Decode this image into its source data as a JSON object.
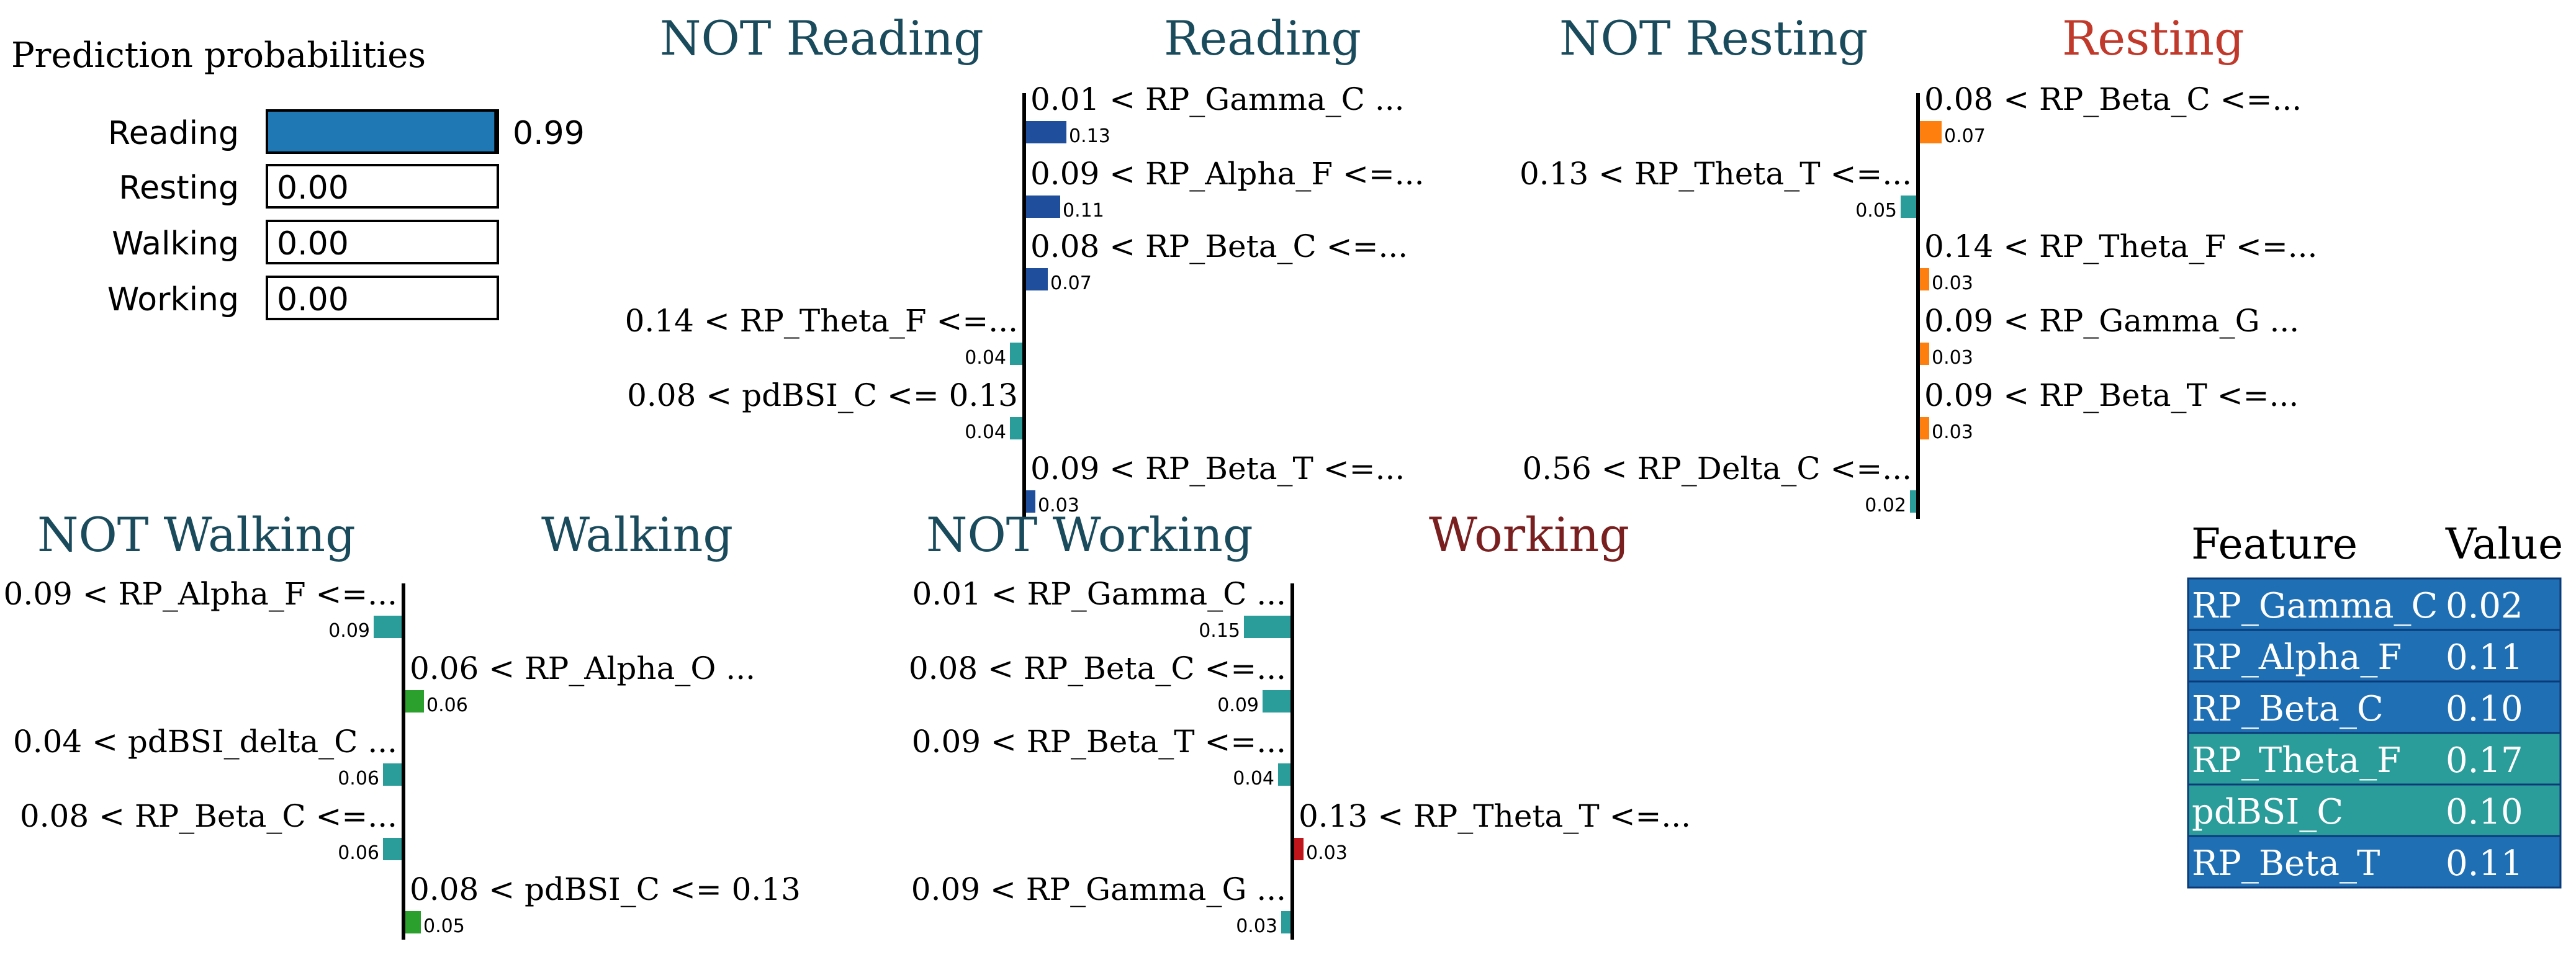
{
  "chart_data": [
    {
      "type": "bar",
      "title": "Prediction probabilities",
      "categories": [
        "Reading",
        "Resting",
        "Walking",
        "Working"
      ],
      "values": [
        0.99,
        0.0,
        0.0,
        0.0
      ],
      "value_labels": [
        "0.99",
        "0.00",
        "0.00",
        "0.00"
      ],
      "xlim": [
        0,
        1
      ],
      "bar_color": "#1f77b4"
    },
    {
      "type": "bar",
      "orientation": "diverging-horizontal",
      "labels": {
        "negative": "NOT Reading",
        "positive": "Reading"
      },
      "colors": {
        "positive": "#1f4e9c",
        "negative": "#2a9d9b",
        "positive_label": "#1a4b5c",
        "negative_label": "#1a4b5c"
      },
      "features": [
        {
          "condition": "0.01 < RP_Gamma_C ...",
          "weight": 0.13,
          "weight_label": "0.13"
        },
        {
          "condition": "0.09 < RP_Alpha_F <=...",
          "weight": 0.11,
          "weight_label": "0.11"
        },
        {
          "condition": "0.08 < RP_Beta_C <=...",
          "weight": 0.07,
          "weight_label": "0.07"
        },
        {
          "condition": "0.14 < RP_Theta_F <=...",
          "weight": -0.04,
          "weight_label": "0.04"
        },
        {
          "condition": "0.08 < pdBSI_C <= 0.13",
          "weight": -0.04,
          "weight_label": "0.04"
        },
        {
          "condition": "0.09 < RP_Beta_T <=...",
          "weight": 0.03,
          "weight_label": "0.03"
        }
      ]
    },
    {
      "type": "bar",
      "orientation": "diverging-horizontal",
      "labels": {
        "negative": "NOT Resting",
        "positive": "Resting"
      },
      "colors": {
        "positive": "#ff7f0e",
        "negative": "#2a9d9b",
        "positive_label": "#c0392b",
        "negative_label": "#1a4b5c"
      },
      "features": [
        {
          "condition": "0.08 < RP_Beta_C <=...",
          "weight": 0.07,
          "weight_label": "0.07"
        },
        {
          "condition": "0.13 < RP_Theta_T <=...",
          "weight": -0.05,
          "weight_label": "0.05"
        },
        {
          "condition": "0.14 < RP_Theta_F <=...",
          "weight": 0.03,
          "weight_label": "0.03"
        },
        {
          "condition": "0.09 < RP_Gamma_G ...",
          "weight": 0.03,
          "weight_label": "0.03"
        },
        {
          "condition": "0.09 < RP_Beta_T <=...",
          "weight": 0.03,
          "weight_label": "0.03"
        },
        {
          "condition": "0.56 < RP_Delta_C <=...",
          "weight": -0.02,
          "weight_label": "0.02"
        }
      ]
    },
    {
      "type": "bar",
      "orientation": "diverging-horizontal",
      "labels": {
        "negative": "NOT Walking",
        "positive": "Walking"
      },
      "colors": {
        "positive": "#2ca02c",
        "negative": "#2a9d9b",
        "positive_label": "#1a4b5c",
        "negative_label": "#1a4b5c"
      },
      "features": [
        {
          "condition": "0.09 < RP_Alpha_F <=...",
          "weight": -0.09,
          "weight_label": "0.09"
        },
        {
          "condition": "0.06 < RP_Alpha_O ...",
          "weight": 0.06,
          "weight_label": "0.06"
        },
        {
          "condition": "0.04 < pdBSI_delta_C ...",
          "weight": -0.06,
          "weight_label": "0.06"
        },
        {
          "condition": "0.08 < RP_Beta_C <=...",
          "weight": -0.06,
          "weight_label": "0.06"
        },
        {
          "condition": "0.08 < pdBSI_C <= 0.13",
          "weight": 0.05,
          "weight_label": "0.05"
        }
      ]
    },
    {
      "type": "bar",
      "orientation": "diverging-horizontal",
      "labels": {
        "negative": "NOT Working",
        "positive": "Working"
      },
      "colors": {
        "positive": "#c0151a",
        "negative": "#2a9d9b",
        "positive_label": "#7a1f1f",
        "negative_label": "#1a4b5c"
      },
      "features": [
        {
          "condition": "0.01 < RP_Gamma_C ...",
          "weight": -0.15,
          "weight_label": "0.15"
        },
        {
          "condition": "0.08 < RP_Beta_C <=...",
          "weight": -0.09,
          "weight_label": "0.09"
        },
        {
          "condition": "0.09 < RP_Beta_T <=...",
          "weight": -0.04,
          "weight_label": "0.04"
        },
        {
          "condition": "0.13 < RP_Theta_T <=...",
          "weight": 0.03,
          "weight_label": "0.03"
        },
        {
          "condition": "0.09 < RP_Gamma_G ...",
          "weight": -0.03,
          "weight_label": "0.03"
        }
      ]
    },
    {
      "type": "table",
      "columns": [
        "Feature",
        "Value"
      ],
      "rows": [
        {
          "feature": "RP_Gamma_C",
          "value": "0.02",
          "color": "#1f6fb4"
        },
        {
          "feature": "RP_Alpha_F",
          "value": "0.11",
          "color": "#1f6fb4"
        },
        {
          "feature": "RP_Beta_C",
          "value": "0.10",
          "color": "#1f6fb4"
        },
        {
          "feature": "RP_Theta_F",
          "value": "0.17",
          "color": "#2a9d9b"
        },
        {
          "feature": "pdBSI_C",
          "value": "0.10",
          "color": "#2a9d9b"
        },
        {
          "feature": "RP_Beta_T",
          "value": "0.11",
          "color": "#1f6fb4"
        }
      ]
    }
  ]
}
